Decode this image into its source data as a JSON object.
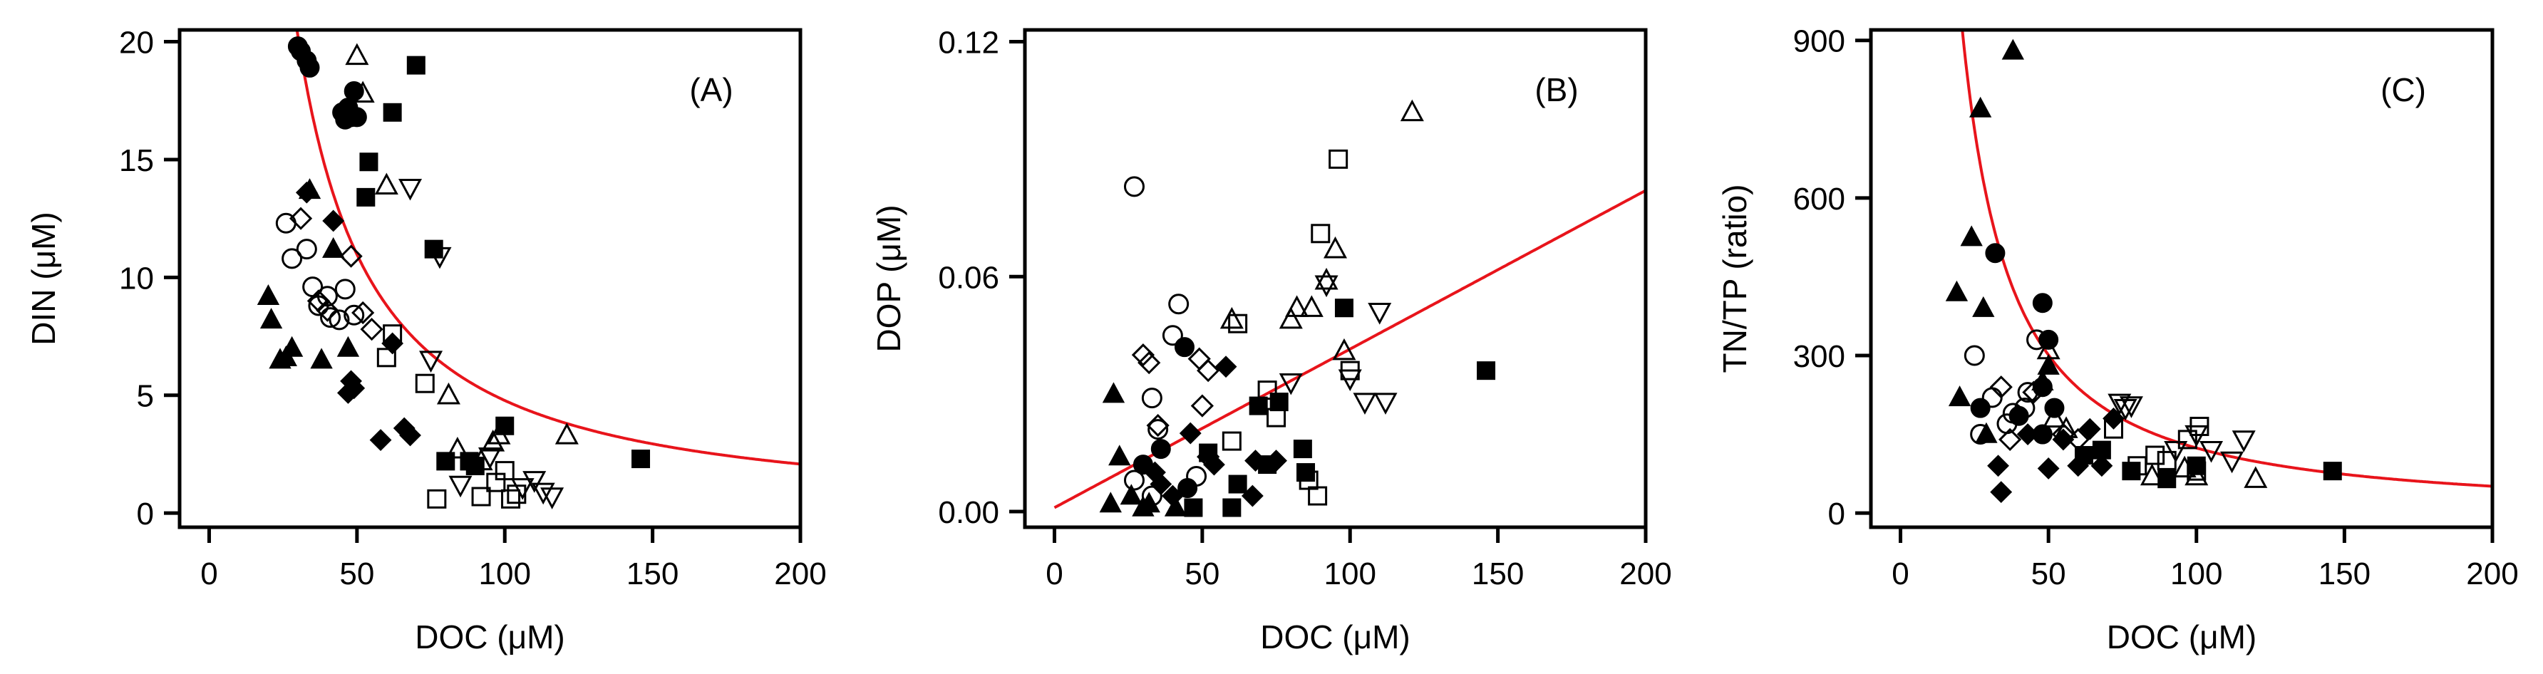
{
  "chart_data": [
    {
      "panel": "(A)",
      "type": "scatter",
      "xlabel": "DOC (μM)",
      "ylabel": "DIN (μM)",
      "xlim": [
        -10,
        200
      ],
      "ylim": [
        -0.6,
        20.5
      ],
      "xticks": [
        0,
        50,
        100,
        150,
        200
      ],
      "xtick_labels": [
        "0",
        "50",
        "100",
        "150",
        "200"
      ],
      "yticks": [
        0,
        5,
        10,
        15,
        20
      ],
      "ytick_labels": [
        "0",
        "5",
        "10",
        "15",
        "20"
      ],
      "fit": {
        "type": "power",
        "a": 1200,
        "b": -1.2,
        "x_range": [
          20,
          200
        ]
      },
      "series": [
        {
          "marker": "filled-circle",
          "points": [
            [
              30,
              19.8
            ],
            [
              31,
              19.6
            ],
            [
              33,
              19.2
            ],
            [
              34,
              18.9
            ],
            [
              45,
              17.0
            ],
            [
              46,
              16.7
            ],
            [
              47,
              17.2
            ],
            [
              48,
              16.8
            ],
            [
              49,
              17.9
            ],
            [
              50,
              16.8
            ]
          ]
        },
        {
          "marker": "filled-square",
          "points": [
            [
              70,
              19.0
            ],
            [
              62,
              17.0
            ],
            [
              54,
              14.9
            ],
            [
              53,
              13.4
            ],
            [
              76,
              11.2
            ],
            [
              80,
              2.2
            ],
            [
              88,
              2.2
            ],
            [
              90,
              2.0
            ],
            [
              100,
              3.7
            ],
            [
              146,
              2.3
            ]
          ]
        },
        {
          "marker": "filled-triangle",
          "points": [
            [
              20,
              9.2
            ],
            [
              21,
              8.2
            ],
            [
              24,
              6.5
            ],
            [
              26,
              6.6
            ],
            [
              28,
              7.0
            ],
            [
              38,
              6.5
            ],
            [
              47,
              7.0
            ],
            [
              42,
              11.2
            ],
            [
              34,
              13.7
            ]
          ]
        },
        {
          "marker": "filled-diamond",
          "points": [
            [
              33,
              13.6
            ],
            [
              42,
              12.4
            ],
            [
              47,
              5.1
            ],
            [
              48,
              5.6
            ],
            [
              49,
              5.3
            ],
            [
              58,
              3.1
            ],
            [
              66,
              3.6
            ],
            [
              68,
              3.3
            ],
            [
              62,
              7.2
            ]
          ]
        },
        {
          "marker": "open-circle",
          "points": [
            [
              26,
              12.3
            ],
            [
              28,
              10.8
            ],
            [
              35,
              9.6
            ],
            [
              37,
              8.8
            ],
            [
              40,
              9.2
            ],
            [
              41,
              8.3
            ],
            [
              44,
              8.2
            ],
            [
              46,
              9.5
            ],
            [
              49,
              8.4
            ],
            [
              33,
              11.2
            ]
          ]
        },
        {
          "marker": "open-diamond",
          "points": [
            [
              31,
              12.5
            ],
            [
              37,
              9.0
            ],
            [
              48,
              10.9
            ],
            [
              52,
              8.5
            ],
            [
              55,
              7.8
            ],
            [
              40,
              8.6
            ]
          ]
        },
        {
          "marker": "open-square",
          "points": [
            [
              60,
              6.6
            ],
            [
              62,
              7.6
            ],
            [
              73,
              5.5
            ],
            [
              77,
              0.6
            ],
            [
              92,
              0.7
            ],
            [
              97,
              1.3
            ],
            [
              100,
              1.8
            ],
            [
              102,
              0.6
            ],
            [
              104,
              0.8
            ]
          ]
        },
        {
          "marker": "open-triangle",
          "points": [
            [
              50,
              19.4
            ],
            [
              52,
              17.8
            ],
            [
              60,
              13.9
            ],
            [
              81,
              5.0
            ],
            [
              84,
              2.7
            ],
            [
              92,
              2.2
            ],
            [
              96,
              3.0
            ],
            [
              98,
              3.3
            ],
            [
              121,
              3.3
            ]
          ]
        },
        {
          "marker": "open-down-triangle",
          "points": [
            [
              68,
              13.8
            ],
            [
              78,
              10.9
            ],
            [
              75,
              6.5
            ],
            [
              85,
              1.2
            ],
            [
              95,
              2.4
            ],
            [
              106,
              1.1
            ],
            [
              110,
              1.4
            ],
            [
              113,
              0.9
            ],
            [
              116,
              0.7
            ]
          ]
        }
      ]
    },
    {
      "panel": "(B)",
      "type": "scatter",
      "xlabel": "DOC (μM)",
      "ylabel": "DOP (μM)",
      "xlim": [
        -10,
        200
      ],
      "ylim": [
        -0.004,
        0.123
      ],
      "xticks": [
        0,
        50,
        100,
        150,
        200
      ],
      "xtick_labels": [
        "0",
        "50",
        "100",
        "150",
        "200"
      ],
      "yticks": [
        0,
        0.06,
        0.12
      ],
      "ytick_labels": [
        "0.00",
        "0.06",
        "0.12"
      ],
      "fit": {
        "type": "linear",
        "slope": 0.000405,
        "intercept": 0.001,
        "x_range": [
          0,
          200
        ]
      },
      "series": [
        {
          "marker": "filled-circle",
          "points": [
            [
              30,
              0.012
            ],
            [
              44,
              0.042
            ],
            [
              45,
              0.006
            ],
            [
              36,
              0.016
            ]
          ]
        },
        {
          "marker": "filled-square",
          "points": [
            [
              98,
              0.052
            ],
            [
              146,
              0.036
            ],
            [
              69,
              0.027
            ],
            [
              76,
              0.028
            ],
            [
              84,
              0.016
            ],
            [
              85,
              0.01
            ],
            [
              60,
              0.001
            ],
            [
              62,
              0.007
            ],
            [
              72,
              0.012
            ],
            [
              52,
              0.015
            ],
            [
              47,
              0.001
            ]
          ]
        },
        {
          "marker": "filled-triangle",
          "points": [
            [
              20,
              0.03
            ],
            [
              22,
              0.014
            ],
            [
              19,
              0.002
            ],
            [
              26,
              0.004
            ],
            [
              30,
              0.001
            ],
            [
              32,
              0.002
            ],
            [
              41,
              0.001
            ]
          ]
        },
        {
          "marker": "filled-diamond",
          "points": [
            [
              58,
              0.037
            ],
            [
              46,
              0.02
            ],
            [
              34,
              0.01
            ],
            [
              36,
              0.007
            ],
            [
              40,
              0.004
            ],
            [
              54,
              0.012
            ],
            [
              67,
              0.004
            ],
            [
              68,
              0.013
            ],
            [
              75,
              0.013
            ]
          ]
        },
        {
          "marker": "open-circle",
          "points": [
            [
              27,
              0.083
            ],
            [
              42,
              0.053
            ],
            [
              40,
              0.045
            ],
            [
              33,
              0.029
            ],
            [
              35,
              0.021
            ],
            [
              27,
              0.008
            ],
            [
              33,
              0.004
            ],
            [
              48,
              0.009
            ]
          ]
        },
        {
          "marker": "open-diamond",
          "points": [
            [
              30,
              0.04
            ],
            [
              32,
              0.038
            ],
            [
              49,
              0.039
            ],
            [
              52,
              0.036
            ],
            [
              50,
              0.027
            ],
            [
              52,
              0.014
            ],
            [
              35,
              0.022
            ]
          ]
        },
        {
          "marker": "open-square",
          "points": [
            [
              96,
              0.09
            ],
            [
              90,
              0.071
            ],
            [
              62,
              0.048
            ],
            [
              72,
              0.031
            ],
            [
              75,
              0.024
            ],
            [
              86,
              0.008
            ],
            [
              89,
              0.004
            ],
            [
              100,
              0.036
            ],
            [
              60,
              0.018
            ]
          ]
        },
        {
          "marker": "open-triangle",
          "points": [
            [
              121,
              0.102
            ],
            [
              95,
              0.067
            ],
            [
              92,
              0.059
            ],
            [
              80,
              0.049
            ],
            [
              87,
              0.052
            ],
            [
              98,
              0.041
            ],
            [
              60,
              0.049
            ],
            [
              82,
              0.052
            ]
          ]
        },
        {
          "marker": "open-down-triangle",
          "points": [
            [
              92,
              0.058
            ],
            [
              110,
              0.051
            ],
            [
              100,
              0.034
            ],
            [
              105,
              0.028
            ],
            [
              112,
              0.028
            ],
            [
              80,
              0.033
            ]
          ]
        }
      ]
    },
    {
      "panel": "(C)",
      "type": "scatter",
      "xlabel": "DOC (μM)",
      "ylabel": "TN/TP (ratio)",
      "xlim": [
        -10,
        200
      ],
      "ylim": [
        -27,
        920
      ],
      "xticks": [
        0,
        50,
        100,
        150,
        200
      ],
      "xtick_labels": [
        "0",
        "50",
        "100",
        "150",
        "200"
      ],
      "yticks": [
        0,
        300,
        600,
        900
      ],
      "ytick_labels": [
        "0",
        "300",
        "600",
        "900"
      ],
      "fit": {
        "type": "power",
        "a": 45000,
        "b": -1.28,
        "x_range": [
          5,
          200
        ]
      },
      "series": [
        {
          "marker": "filled-circle",
          "points": [
            [
              32,
              495
            ],
            [
              48,
              400
            ],
            [
              50,
              330
            ],
            [
              27,
              200
            ],
            [
              40,
              185
            ],
            [
              48,
              240
            ],
            [
              52,
              200
            ],
            [
              48,
              150
            ]
          ]
        },
        {
          "marker": "filled-square",
          "points": [
            [
              146,
              80
            ],
            [
              90,
              65
            ],
            [
              78,
              80
            ],
            [
              62,
              110
            ],
            [
              68,
              120
            ],
            [
              100,
              90
            ]
          ]
        },
        {
          "marker": "filled-triangle",
          "points": [
            [
              38,
              880
            ],
            [
              27,
              770
            ],
            [
              24,
              525
            ],
            [
              19,
              420
            ],
            [
              28,
              390
            ],
            [
              20,
              220
            ],
            [
              29,
              150
            ],
            [
              50,
              280
            ],
            [
              48,
              250
            ]
          ]
        },
        {
          "marker": "filled-diamond",
          "points": [
            [
              34,
              40
            ],
            [
              33,
              90
            ],
            [
              43,
              150
            ],
            [
              50,
              85
            ],
            [
              55,
              140
            ],
            [
              60,
              90
            ],
            [
              68,
              90
            ],
            [
              72,
              180
            ],
            [
              64,
              160
            ]
          ]
        },
        {
          "marker": "open-circle",
          "points": [
            [
              25,
              300
            ],
            [
              46,
              330
            ],
            [
              43,
              230
            ],
            [
              31,
              220
            ],
            [
              27,
              150
            ],
            [
              36,
              170
            ],
            [
              42,
              200
            ],
            [
              38,
              190
            ]
          ]
        },
        {
          "marker": "open-diamond",
          "points": [
            [
              45,
              230
            ],
            [
              37,
              140
            ],
            [
              55,
              150
            ],
            [
              60,
              140
            ],
            [
              34,
              240
            ]
          ]
        },
        {
          "marker": "open-square",
          "points": [
            [
              101,
              165
            ],
            [
              86,
              110
            ],
            [
              90,
              100
            ],
            [
              80,
              90
            ],
            [
              100,
              80
            ],
            [
              72,
              160
            ],
            [
              97,
              140
            ]
          ]
        },
        {
          "marker": "open-triangle",
          "points": [
            [
              50,
              310
            ],
            [
              52,
              180
            ],
            [
              56,
              160
            ],
            [
              120,
              65
            ],
            [
              96,
              85
            ],
            [
              100,
              70
            ],
            [
              85,
              70
            ]
          ]
        },
        {
          "marker": "open-down-triangle",
          "points": [
            [
              74,
              210
            ],
            [
              78,
              205
            ],
            [
              76,
              200
            ],
            [
              100,
              150
            ],
            [
              105,
              120
            ],
            [
              116,
              140
            ],
            [
              112,
              100
            ],
            [
              93,
              120
            ]
          ]
        }
      ]
    }
  ]
}
